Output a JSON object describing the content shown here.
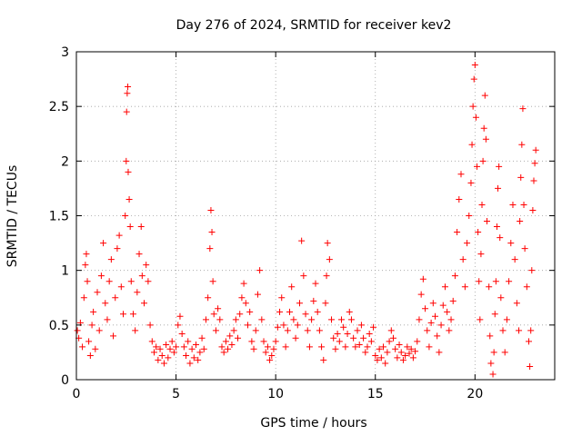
{
  "chart_data": {
    "type": "scatter",
    "title": "Day 276 of 2024, SRMTID for receiver kev2",
    "xlabel": "GPS time / hours",
    "ylabel": "SRMTID / TECUs",
    "xlim": [
      0,
      24
    ],
    "ylim": [
      0,
      3
    ],
    "xticks": [
      0,
      5,
      10,
      15,
      20
    ],
    "yticks": [
      0,
      0.5,
      1,
      1.5,
      2,
      2.5,
      3
    ],
    "xtick_labels": [
      "0",
      "5",
      "10",
      "15",
      "20"
    ],
    "ytick_labels": [
      "0",
      "0.5",
      "1",
      "1.5",
      "2",
      "2.5",
      "3"
    ],
    "grid": true,
    "marker": "+",
    "color": "#ff0000",
    "series": [
      {
        "name": "kev2",
        "points": [
          [
            0.05,
            0.45
          ],
          [
            0.12,
            0.38
          ],
          [
            0.2,
            0.52
          ],
          [
            0.3,
            0.3
          ],
          [
            0.38,
            0.75
          ],
          [
            0.45,
            1.05
          ],
          [
            0.5,
            1.15
          ],
          [
            0.55,
            0.9
          ],
          [
            0.62,
            0.35
          ],
          [
            0.7,
            0.22
          ],
          [
            0.78,
            0.5
          ],
          [
            0.85,
            0.62
          ],
          [
            0.95,
            0.28
          ],
          [
            1.05,
            0.8
          ],
          [
            1.15,
            0.45
          ],
          [
            1.25,
            0.95
          ],
          [
            1.35,
            1.25
          ],
          [
            1.45,
            0.7
          ],
          [
            1.55,
            0.55
          ],
          [
            1.65,
            0.9
          ],
          [
            1.75,
            1.1
          ],
          [
            1.85,
            0.4
          ],
          [
            1.95,
            0.75
          ],
          [
            2.05,
            1.2
          ],
          [
            2.15,
            1.32
          ],
          [
            2.25,
            0.85
          ],
          [
            2.35,
            0.6
          ],
          [
            2.45,
            1.5
          ],
          [
            2.5,
            2.0
          ],
          [
            2.52,
            2.45
          ],
          [
            2.55,
            2.62
          ],
          [
            2.58,
            2.68
          ],
          [
            2.6,
            1.9
          ],
          [
            2.65,
            1.65
          ],
          [
            2.7,
            1.4
          ],
          [
            2.75,
            0.9
          ],
          [
            2.85,
            0.6
          ],
          [
            2.95,
            0.45
          ],
          [
            3.05,
            0.8
          ],
          [
            3.15,
            1.15
          ],
          [
            3.25,
            1.4
          ],
          [
            3.3,
            0.95
          ],
          [
            3.4,
            0.7
          ],
          [
            3.5,
            1.05
          ],
          [
            3.6,
            0.9
          ],
          [
            3.7,
            0.5
          ],
          [
            3.8,
            0.35
          ],
          [
            3.9,
            0.25
          ],
          [
            4.0,
            0.3
          ],
          [
            4.1,
            0.18
          ],
          [
            4.2,
            0.28
          ],
          [
            4.3,
            0.22
          ],
          [
            4.4,
            0.15
          ],
          [
            4.5,
            0.32
          ],
          [
            4.6,
            0.2
          ],
          [
            4.7,
            0.28
          ],
          [
            4.8,
            0.35
          ],
          [
            4.9,
            0.25
          ],
          [
            5.0,
            0.3
          ],
          [
            5.1,
            0.5
          ],
          [
            5.2,
            0.58
          ],
          [
            5.3,
            0.42
          ],
          [
            5.4,
            0.3
          ],
          [
            5.5,
            0.22
          ],
          [
            5.6,
            0.35
          ],
          [
            5.7,
            0.15
          ],
          [
            5.8,
            0.28
          ],
          [
            5.9,
            0.2
          ],
          [
            6.0,
            0.32
          ],
          [
            6.1,
            0.18
          ],
          [
            6.2,
            0.25
          ],
          [
            6.3,
            0.38
          ],
          [
            6.4,
            0.28
          ],
          [
            6.5,
            0.55
          ],
          [
            6.6,
            0.75
          ],
          [
            6.7,
            1.2
          ],
          [
            6.75,
            1.55
          ],
          [
            6.8,
            1.35
          ],
          [
            6.85,
            0.9
          ],
          [
            6.9,
            0.6
          ],
          [
            7.0,
            0.45
          ],
          [
            7.1,
            0.65
          ],
          [
            7.2,
            0.55
          ],
          [
            7.3,
            0.3
          ],
          [
            7.4,
            0.25
          ],
          [
            7.5,
            0.35
          ],
          [
            7.6,
            0.28
          ],
          [
            7.7,
            0.4
          ],
          [
            7.8,
            0.32
          ],
          [
            7.9,
            0.45
          ],
          [
            8.0,
            0.55
          ],
          [
            8.1,
            0.38
          ],
          [
            8.2,
            0.6
          ],
          [
            8.3,
            0.75
          ],
          [
            8.4,
            0.88
          ],
          [
            8.5,
            0.7
          ],
          [
            8.6,
            0.5
          ],
          [
            8.7,
            0.62
          ],
          [
            8.8,
            0.35
          ],
          [
            8.9,
            0.28
          ],
          [
            9.0,
            0.45
          ],
          [
            9.1,
            0.78
          ],
          [
            9.2,
            1.0
          ],
          [
            9.3,
            0.55
          ],
          [
            9.4,
            0.35
          ],
          [
            9.5,
            0.25
          ],
          [
            9.6,
            0.3
          ],
          [
            9.7,
            0.18
          ],
          [
            9.8,
            0.22
          ],
          [
            9.9,
            0.28
          ],
          [
            10.0,
            0.35
          ],
          [
            10.1,
            0.48
          ],
          [
            10.2,
            0.62
          ],
          [
            10.3,
            0.75
          ],
          [
            10.4,
            0.5
          ],
          [
            10.5,
            0.3
          ],
          [
            10.6,
            0.45
          ],
          [
            10.7,
            0.62
          ],
          [
            10.8,
            0.85
          ],
          [
            10.9,
            0.55
          ],
          [
            11.0,
            0.38
          ],
          [
            11.1,
            0.5
          ],
          [
            11.2,
            0.7
          ],
          [
            11.3,
            1.27
          ],
          [
            11.4,
            0.95
          ],
          [
            11.5,
            0.6
          ],
          [
            11.6,
            0.45
          ],
          [
            11.7,
            0.3
          ],
          [
            11.8,
            0.55
          ],
          [
            11.9,
            0.72
          ],
          [
            12.0,
            0.88
          ],
          [
            12.1,
            0.62
          ],
          [
            12.2,
            0.45
          ],
          [
            12.3,
            0.3
          ],
          [
            12.4,
            0.18
          ],
          [
            12.5,
            0.7
          ],
          [
            12.55,
            0.95
          ],
          [
            12.6,
            1.25
          ],
          [
            12.7,
            1.1
          ],
          [
            12.8,
            0.55
          ],
          [
            12.9,
            0.38
          ],
          [
            13.0,
            0.28
          ],
          [
            13.1,
            0.42
          ],
          [
            13.2,
            0.35
          ],
          [
            13.3,
            0.55
          ],
          [
            13.4,
            0.48
          ],
          [
            13.5,
            0.3
          ],
          [
            13.6,
            0.42
          ],
          [
            13.7,
            0.62
          ],
          [
            13.8,
            0.55
          ],
          [
            13.9,
            0.38
          ],
          [
            14.0,
            0.3
          ],
          [
            14.1,
            0.45
          ],
          [
            14.2,
            0.32
          ],
          [
            14.3,
            0.5
          ],
          [
            14.4,
            0.38
          ],
          [
            14.5,
            0.25
          ],
          [
            14.6,
            0.3
          ],
          [
            14.7,
            0.42
          ],
          [
            14.8,
            0.35
          ],
          [
            14.9,
            0.48
          ],
          [
            15.0,
            0.22
          ],
          [
            15.1,
            0.18
          ],
          [
            15.2,
            0.28
          ],
          [
            15.3,
            0.2
          ],
          [
            15.4,
            0.3
          ],
          [
            15.5,
            0.15
          ],
          [
            15.6,
            0.25
          ],
          [
            15.7,
            0.35
          ],
          [
            15.8,
            0.45
          ],
          [
            15.9,
            0.38
          ],
          [
            16.0,
            0.28
          ],
          [
            16.1,
            0.2
          ],
          [
            16.2,
            0.32
          ],
          [
            16.3,
            0.25
          ],
          [
            16.4,
            0.18
          ],
          [
            16.5,
            0.22
          ],
          [
            16.6,
            0.3
          ],
          [
            16.7,
            0.24
          ],
          [
            16.8,
            0.28
          ],
          [
            16.9,
            0.2
          ],
          [
            17.0,
            0.26
          ],
          [
            17.1,
            0.35
          ],
          [
            17.2,
            0.55
          ],
          [
            17.3,
            0.78
          ],
          [
            17.4,
            0.92
          ],
          [
            17.5,
            0.65
          ],
          [
            17.6,
            0.45
          ],
          [
            17.7,
            0.3
          ],
          [
            17.8,
            0.52
          ],
          [
            17.9,
            0.7
          ],
          [
            18.0,
            0.58
          ],
          [
            18.1,
            0.4
          ],
          [
            18.2,
            0.25
          ],
          [
            18.3,
            0.5
          ],
          [
            18.4,
            0.68
          ],
          [
            18.5,
            0.85
          ],
          [
            18.6,
            0.62
          ],
          [
            18.7,
            0.45
          ],
          [
            18.8,
            0.55
          ],
          [
            18.9,
            0.72
          ],
          [
            19.0,
            0.95
          ],
          [
            19.1,
            1.35
          ],
          [
            19.2,
            1.65
          ],
          [
            19.3,
            1.88
          ],
          [
            19.4,
            1.1
          ],
          [
            19.5,
            0.85
          ],
          [
            19.6,
            1.25
          ],
          [
            19.7,
            1.5
          ],
          [
            19.8,
            1.8
          ],
          [
            19.85,
            2.15
          ],
          [
            19.9,
            2.5
          ],
          [
            19.95,
            2.75
          ],
          [
            20.0,
            2.88
          ],
          [
            20.05,
            2.4
          ],
          [
            20.1,
            1.95
          ],
          [
            20.15,
            1.35
          ],
          [
            20.2,
            0.9
          ],
          [
            20.25,
            0.55
          ],
          [
            20.3,
            1.15
          ],
          [
            20.35,
            1.6
          ],
          [
            20.4,
            2.0
          ],
          [
            20.45,
            2.3
          ],
          [
            20.5,
            2.6
          ],
          [
            20.55,
            2.2
          ],
          [
            20.6,
            1.45
          ],
          [
            20.7,
            0.85
          ],
          [
            20.75,
            0.4
          ],
          [
            20.8,
            0.15
          ],
          [
            20.9,
            0.05
          ],
          [
            20.95,
            0.25
          ],
          [
            21.0,
            0.6
          ],
          [
            21.05,
            0.9
          ],
          [
            21.1,
            1.4
          ],
          [
            21.15,
            1.75
          ],
          [
            21.2,
            1.95
          ],
          [
            21.25,
            1.3
          ],
          [
            21.3,
            0.75
          ],
          [
            21.4,
            0.45
          ],
          [
            21.5,
            0.25
          ],
          [
            21.6,
            0.55
          ],
          [
            21.7,
            0.9
          ],
          [
            21.8,
            1.25
          ],
          [
            21.9,
            1.6
          ],
          [
            22.0,
            1.1
          ],
          [
            22.1,
            0.7
          ],
          [
            22.2,
            0.45
          ],
          [
            22.25,
            1.45
          ],
          [
            22.3,
            1.85
          ],
          [
            22.35,
            2.15
          ],
          [
            22.4,
            2.48
          ],
          [
            22.45,
            1.6
          ],
          [
            22.5,
            1.2
          ],
          [
            22.6,
            0.85
          ],
          [
            22.7,
            0.35
          ],
          [
            22.75,
            0.12
          ],
          [
            22.8,
            0.45
          ],
          [
            22.85,
            1.0
          ],
          [
            22.9,
            1.55
          ],
          [
            22.95,
            1.82
          ],
          [
            23.0,
            1.98
          ],
          [
            23.05,
            2.1
          ]
        ]
      }
    ]
  }
}
